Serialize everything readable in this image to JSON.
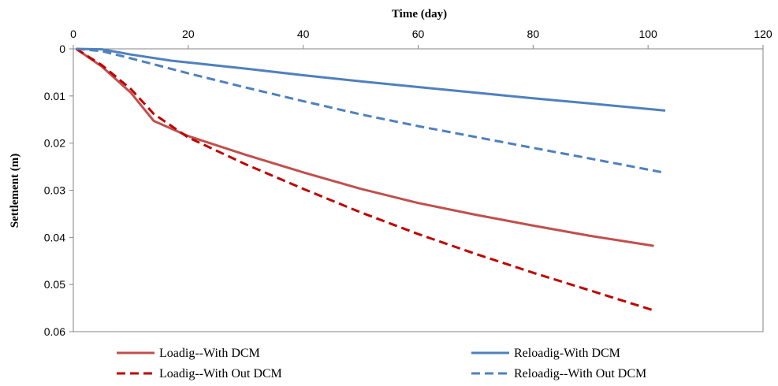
{
  "chart_data": {
    "type": "line",
    "xlabel": "Time (day)",
    "ylabel": "Settlement (m)",
    "xlim": [
      0,
      120
    ],
    "ylim": [
      0,
      0.06
    ],
    "y_inverted": true,
    "x_axis_position": "top",
    "x_ticks": [
      0,
      20,
      40,
      60,
      80,
      100,
      120
    ],
    "y_ticks": [
      0,
      0.01,
      0.02,
      0.03,
      0.04,
      0.05,
      0.06
    ],
    "x_tick_labels": [
      "0",
      "20",
      "40",
      "60",
      "80",
      "100",
      "120"
    ],
    "y_tick_labels": [
      "0",
      "0.01",
      "0.02",
      "0.03",
      "0.04",
      "0.05",
      "0.06"
    ],
    "grid": false,
    "legend_position": "bottom",
    "series": [
      {
        "name": "Loadig--With DCM",
        "color": "#c0504d",
        "dash": "solid",
        "x": [
          0.5,
          5,
          10,
          14,
          20,
          30,
          40,
          50,
          60,
          70,
          80,
          90,
          101
        ],
        "y": [
          0,
          0.0038,
          0.0093,
          0.0153,
          0.0185,
          0.0225,
          0.0262,
          0.0297,
          0.0327,
          0.0352,
          0.0375,
          0.0397,
          0.0418
        ]
      },
      {
        "name": "Reloadig-With DCM",
        "color": "#4f81bd",
        "dash": "solid",
        "x": [
          0.5,
          5,
          10,
          17,
          30,
          40,
          50,
          60,
          70,
          80,
          90,
          103
        ],
        "y": [
          0,
          0.0001,
          0.0012,
          0.0025,
          0.0042,
          0.0056,
          0.0069,
          0.0081,
          0.0093,
          0.0105,
          0.0116,
          0.0131
        ]
      },
      {
        "name": "Loadig--With Out DCM",
        "color": "#c00000",
        "dash": "dashed",
        "x": [
          0.5,
          5,
          10,
          14,
          20,
          30,
          40,
          50,
          60,
          70,
          80,
          90,
          101
        ],
        "y": [
          0,
          0.0035,
          0.0085,
          0.0138,
          0.0188,
          0.0245,
          0.0297,
          0.0347,
          0.0393,
          0.0435,
          0.0475,
          0.0513,
          0.0555
        ]
      },
      {
        "name": "Reloadig--With Out DCM",
        "color": "#4f81bd",
        "dash": "dashed",
        "x": [
          0.5,
          5,
          10,
          20,
          30,
          40,
          50,
          60,
          70,
          80,
          90,
          103
        ],
        "y": [
          0,
          0.0005,
          0.002,
          0.0052,
          0.0082,
          0.0111,
          0.0139,
          0.0164,
          0.0187,
          0.021,
          0.0233,
          0.0263
        ]
      }
    ]
  }
}
